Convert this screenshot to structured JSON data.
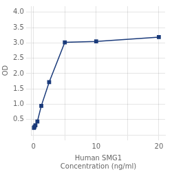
{
  "chart_data": {
    "type": "line",
    "x": [
      0.078,
      0.156,
      0.313,
      0.625,
      1.25,
      2.5,
      5,
      10,
      20
    ],
    "values": [
      0.229,
      0.259,
      0.312,
      0.437,
      0.946,
      1.72,
      3.02,
      3.05,
      3.19
    ],
    "color": "#1a3a7a",
    "marker": "square",
    "xlabel": [
      "Human SMG1",
      "Concentration (ng/ml)"
    ],
    "ylabel": "OD",
    "xlim": [
      -0.3,
      21
    ],
    "ylim": [
      0.0,
      4.2
    ],
    "xticks": [
      0,
      {
        "value": 5,
        "label": null
      },
      10,
      {
        "value": 15,
        "label": null
      },
      20
    ],
    "yticks": [
      0.5,
      {
        "value": 1.0,
        "label": "1.0"
      },
      1.5,
      {
        "value": 2.0,
        "label": "2.0"
      },
      2.5,
      {
        "value": 3.0,
        "label": "3.0"
      },
      3.5,
      {
        "value": 4.0,
        "label": "4.0"
      }
    ],
    "grid": true
  }
}
